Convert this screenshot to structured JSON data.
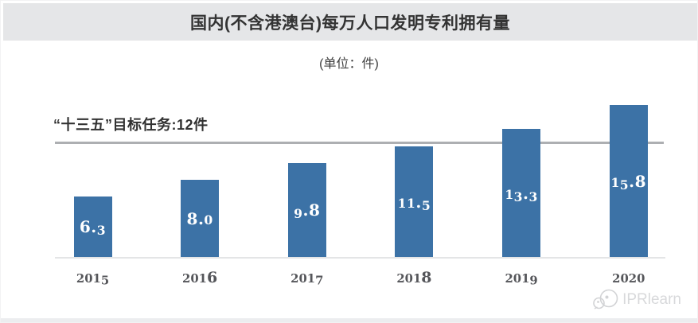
{
  "page": {
    "watermark_text": "IPRlearn"
  },
  "chart_data": {
    "type": "bar",
    "title": "国内(不含港澳台)每万人口发明专利拥有量",
    "unit_label": "(单位：件)",
    "categories": [
      "2015",
      "2016",
      "2017",
      "2018",
      "2019",
      "2020"
    ],
    "values": [
      6.3,
      8.0,
      9.8,
      11.5,
      13.3,
      15.8
    ],
    "value_labels": [
      "6.3",
      "8.0",
      "9.8",
      "11.5",
      "13.3",
      "15.8"
    ],
    "target_line": {
      "value": 12,
      "label": "“十三五”目标任务:12件"
    },
    "ylim": [
      0,
      16.6
    ],
    "xlabel": "",
    "ylabel": "",
    "grid": "off",
    "legend": "none",
    "colors": {
      "bar": "#3C72A6",
      "bar_label": "#FFFFFF",
      "target_line": "#ADAFB2",
      "baseline": "#E4E5E6",
      "axis_label": "#55565A",
      "title_bar_bg": "#E5E6E8",
      "title_text": "#333333",
      "watermark": "#D8D9DB"
    }
  }
}
